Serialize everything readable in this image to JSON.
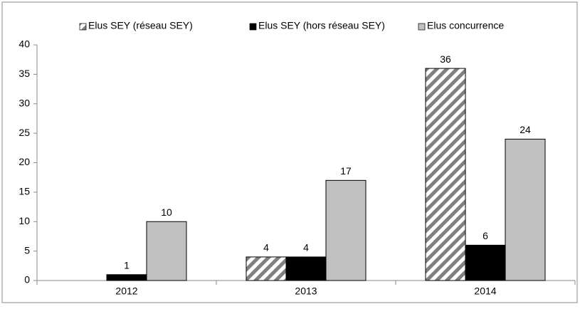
{
  "chart_data": {
    "type": "bar",
    "categories": [
      "2012",
      "2013",
      "2014"
    ],
    "series": [
      {
        "name": "Elus SEY (réseau SEY)",
        "color": "#808080",
        "pattern": "hatch",
        "values": [
          null,
          4,
          36
        ]
      },
      {
        "name": "Elus SEY (hors réseau SEY)",
        "color": "#000000",
        "values": [
          1,
          4,
          6
        ]
      },
      {
        "name": "Elus concurrence",
        "color": "#c0c0c0",
        "values": [
          10,
          17,
          24
        ]
      }
    ],
    "ylim": [
      0,
      40
    ],
    "yticks": [
      0,
      5,
      10,
      15,
      20,
      25,
      30,
      35,
      40
    ],
    "grid": false,
    "legend": "top"
  }
}
